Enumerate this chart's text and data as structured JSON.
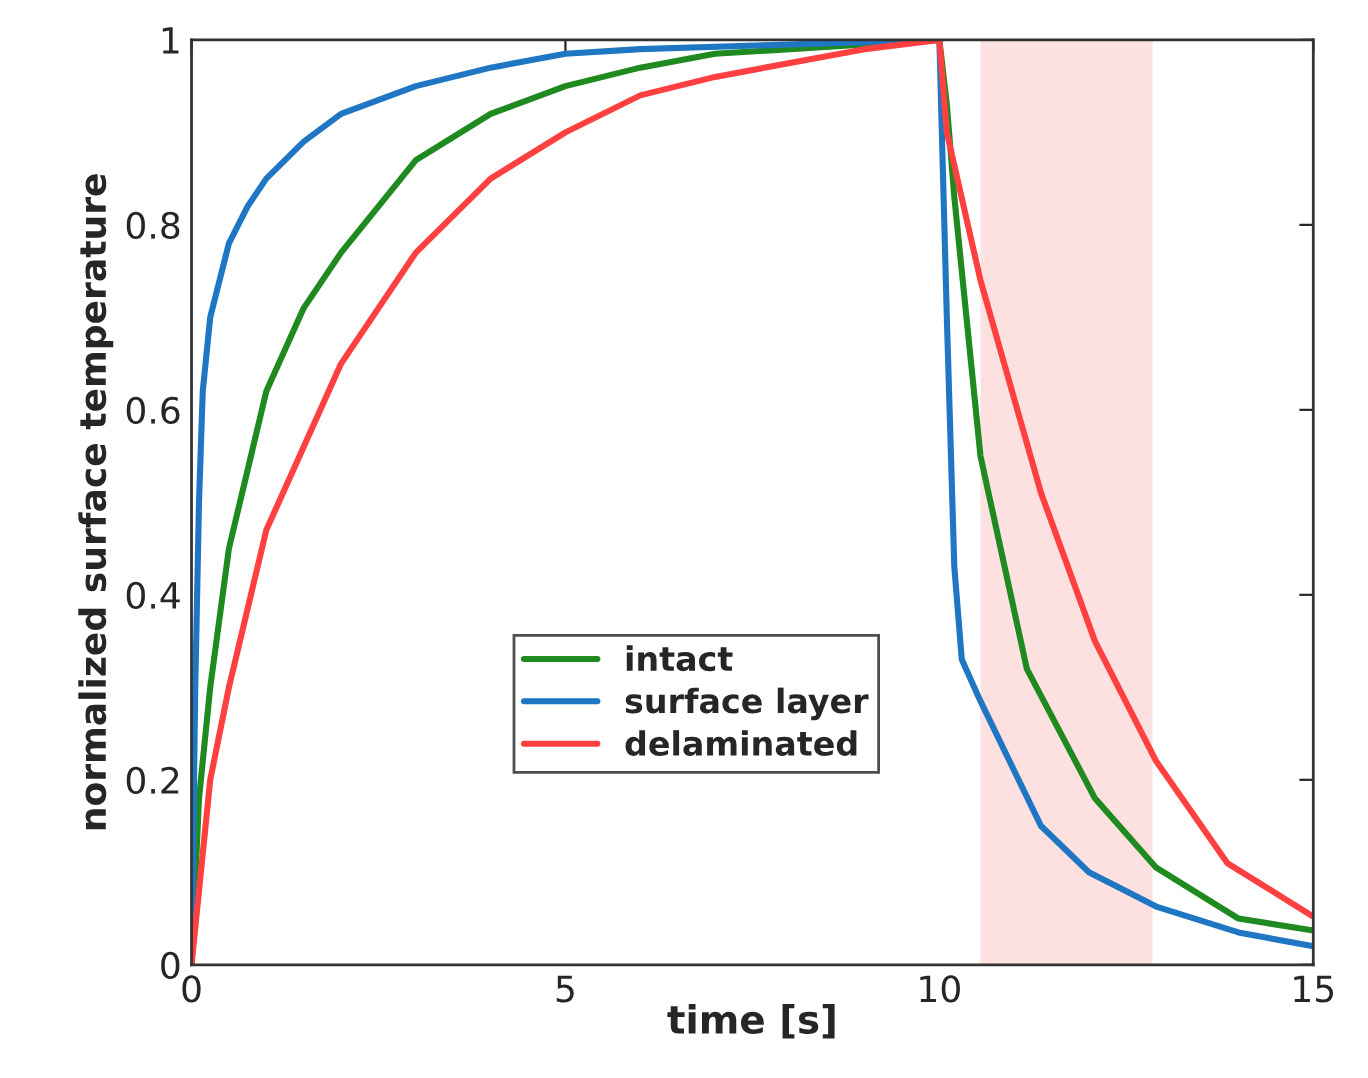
{
  "chart_data": {
    "type": "line",
    "xlabel": "time [s]",
    "ylabel": "normalized surface temperature",
    "xlim": [
      0,
      15
    ],
    "ylim": [
      0,
      1
    ],
    "xticks": [
      0,
      5,
      10,
      15
    ],
    "yticks": [
      0,
      0.2,
      0.4,
      0.6,
      0.8,
      1
    ],
    "grid": false,
    "legend": "lower center",
    "line_style": "solid",
    "marker": "none",
    "series": [
      {
        "name": "intact",
        "color": "#1f8a1f",
        "x": [
          0,
          0.1,
          0.25,
          0.5,
          1,
          1.5,
          2,
          3,
          4,
          5,
          6,
          7,
          8,
          9,
          10,
          10.1,
          10.2,
          10.55,
          11.17,
          12.08,
          12.9,
          14,
          15
        ],
        "values": [
          0,
          0.18,
          0.3,
          0.45,
          0.62,
          0.71,
          0.77,
          0.87,
          0.92,
          0.95,
          0.97,
          0.985,
          0.99,
          0.995,
          1,
          0.93,
          0.83,
          0.55,
          0.32,
          0.18,
          0.105,
          0.05,
          0.037
        ]
      },
      {
        "name": "surface layer",
        "color": "#1f77c4",
        "x": [
          0,
          0.05,
          0.1,
          0.15,
          0.25,
          0.5,
          0.75,
          1,
          1.5,
          2,
          3,
          4,
          5,
          6,
          8,
          10,
          10.05,
          10.1,
          10.2,
          10.3,
          10.55,
          11.36,
          12,
          12.9,
          14,
          15
        ],
        "values": [
          0,
          0.3,
          0.5,
          0.62,
          0.7,
          0.78,
          0.82,
          0.85,
          0.89,
          0.92,
          0.95,
          0.97,
          0.985,
          0.99,
          0.995,
          1,
          0.85,
          0.7,
          0.43,
          0.33,
          0.285,
          0.15,
          0.1,
          0.063,
          0.035,
          0.02
        ]
      },
      {
        "name": "delaminated",
        "color": "#ff4040",
        "x": [
          0,
          0.25,
          0.5,
          1,
          2,
          3,
          4,
          5,
          6,
          7,
          8,
          9,
          10,
          10.1,
          10.55,
          11.36,
          12.08,
          12.9,
          13.85,
          15
        ],
        "values": [
          0,
          0.2,
          0.3,
          0.47,
          0.65,
          0.77,
          0.85,
          0.9,
          0.94,
          0.96,
          0.975,
          0.99,
          1,
          0.9,
          0.74,
          0.51,
          0.35,
          0.22,
          0.11,
          0.052
        ]
      }
    ],
    "bands": [
      {
        "axis": "x",
        "from": 10.55,
        "to": 12.85,
        "color": "#fde0e0"
      }
    ]
  }
}
